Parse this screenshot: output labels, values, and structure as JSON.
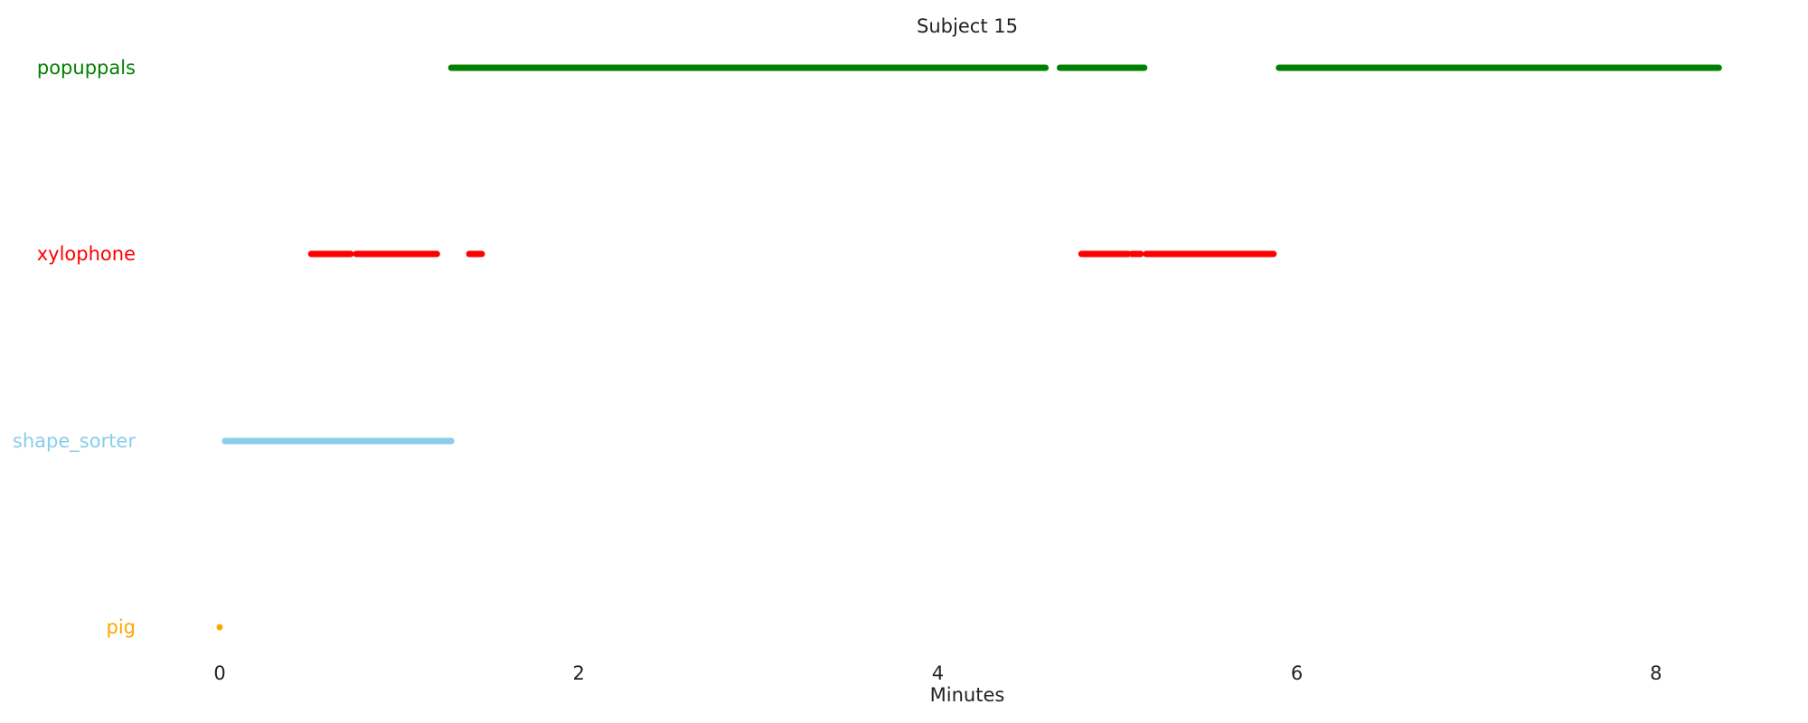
{
  "chart_data": {
    "type": "timeline",
    "title": "Subject 15",
    "xlabel": "Minutes",
    "ylabel": "",
    "xlim": [
      -0.15,
      8.8
    ],
    "xticks": [
      0,
      2,
      4,
      6,
      8
    ],
    "grid": false,
    "legend": "none",
    "series": [
      {
        "name": "popuppals",
        "color": "#008000",
        "segments": [
          [
            1.29,
            4.6
          ],
          [
            4.68,
            5.15
          ],
          [
            5.9,
            8.35
          ]
        ]
      },
      {
        "name": "xylophone",
        "color": "#ff0000",
        "segments": [
          [
            0.51,
            0.73
          ],
          [
            0.76,
            1.21
          ],
          [
            1.39,
            1.46
          ],
          [
            4.8,
            5.06
          ],
          [
            5.08,
            5.13
          ],
          [
            5.16,
            5.87
          ]
        ]
      },
      {
        "name": "shape_sorter",
        "color": "#87ceeb",
        "segments": [
          [
            0.03,
            1.29
          ]
        ]
      },
      {
        "name": "pig",
        "color": "#ffa500",
        "segments": [
          [
            0.0,
            0.0
          ]
        ]
      }
    ]
  }
}
